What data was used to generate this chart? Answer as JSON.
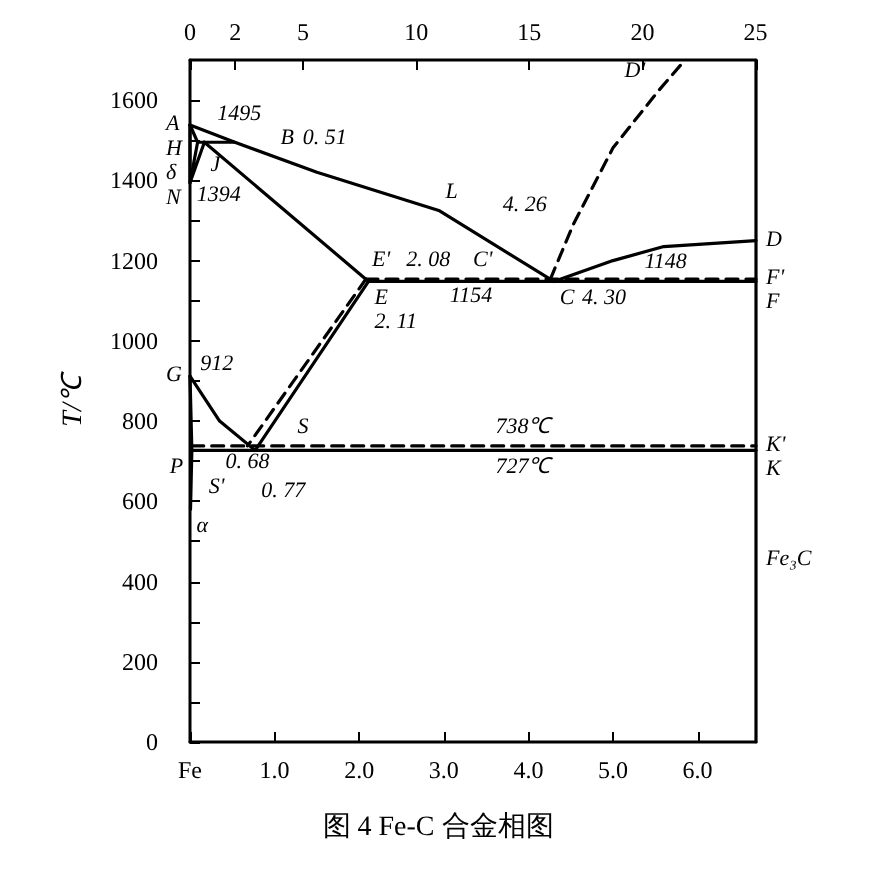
{
  "chart_data": {
    "type": "line",
    "ylabel": "T/℃",
    "marker": "none",
    "grid": false,
    "line_style": "solid",
    "xlim": [
      0,
      6.69
    ],
    "ylim": [
      0,
      1700
    ],
    "x2lim": [
      0,
      25.02
    ],
    "xticks": [
      {
        "value": 0,
        "label": "Fe"
      },
      {
        "value": 1,
        "label": "1.0"
      },
      {
        "value": 2,
        "label": "2.0"
      },
      {
        "value": 3,
        "label": "3.0"
      },
      {
        "value": 4,
        "label": "4.0"
      },
      {
        "value": 5,
        "label": "5.0"
      },
      {
        "value": 6,
        "label": "6.0"
      }
    ],
    "x2ticks": [
      0,
      2,
      5,
      10,
      15,
      20,
      25
    ],
    "yticks": [
      0,
      {
        "value": 100,
        "label": null
      },
      200,
      {
        "value": 300,
        "label": null
      },
      400,
      {
        "value": 500,
        "label": null
      },
      600,
      {
        "value": 700,
        "label": null
      },
      800,
      {
        "value": 900,
        "label": null
      },
      1000,
      {
        "value": 1100,
        "label": null
      },
      1200,
      {
        "value": 1300,
        "label": null
      },
      1400,
      {
        "value": 1500,
        "label": null
      },
      1600
    ],
    "series": [
      {
        "color": "#000000",
        "x": [
          0,
          0.53,
          1.5,
          2.95,
          4.3
        ],
        "values": [
          1538,
          1495,
          1420,
          1324,
          1148
        ]
      },
      {
        "color": "#000000",
        "x": [
          4.3,
          5.0,
          5.6,
          6.69
        ],
        "values": [
          1148,
          1200,
          1235,
          1250
        ]
      },
      {
        "color": "#000000",
        "x": [
          0,
          0.09,
          0.53
        ],
        "values": [
          1538,
          1495,
          1495
        ]
      },
      {
        "color": "#000000",
        "x": [
          0.09,
          0,
          0.17
        ],
        "values": [
          1495,
          1394,
          1495
        ]
      },
      {
        "color": "#000000",
        "x": [
          0,
          0
        ],
        "values": [
          1538,
          1394
        ]
      },
      {
        "color": "#000000",
        "x": [
          0.17,
          2.11
        ],
        "values": [
          1495,
          1148
        ]
      },
      {
        "color": "#000000",
        "x": [
          2.11,
          6.69
        ],
        "values": [
          1148,
          1148
        ]
      },
      {
        "color": "#000000",
        "line_style": "dashed",
        "x": [
          2.08,
          6.69
        ],
        "values": [
          1154,
          1154
        ]
      },
      {
        "color": "#000000",
        "x": [
          2.11,
          0.77
        ],
        "values": [
          1148,
          727
        ]
      },
      {
        "color": "#000000",
        "line_style": "dashed",
        "x": [
          2.08,
          0.68
        ],
        "values": [
          1154,
          738
        ]
      },
      {
        "color": "#000000",
        "x": [
          0,
          0.35,
          0.77
        ],
        "values": [
          912,
          800,
          727
        ]
      },
      {
        "color": "#000000",
        "x": [
          0,
          0.0218,
          0.006
        ],
        "values": [
          912,
          727,
          580
        ]
      },
      {
        "color": "#000000",
        "x": [
          0.0218,
          6.69
        ],
        "values": [
          727,
          727
        ]
      },
      {
        "color": "#000000",
        "line_style": "dashed",
        "x": [
          0.02,
          6.69
        ],
        "values": [
          738,
          738
        ]
      },
      {
        "color": "#000000",
        "line_style": "dashed",
        "x": [
          4.26,
          4.53,
          5.0,
          5.54,
          5.83
        ],
        "values": [
          1154,
          1290,
          1481,
          1624,
          1695
        ]
      },
      {
        "color": "#000000",
        "x": [
          6.69,
          6.69
        ],
        "values": [
          0,
          1700
        ]
      }
    ],
    "annotations": [
      {
        "text": "1495",
        "x": 0.25,
        "y": 1518
      },
      {
        "text": "A",
        "x": 0,
        "y": 1538
      },
      {
        "text": "B",
        "x": 1.0,
        "y": 1459
      },
      {
        "text": "0. 51",
        "x": 1.0,
        "y": 1459
      },
      {
        "text": "H",
        "x": 0,
        "y": 1495
      },
      {
        "text": "δ",
        "x": 0,
        "y": 1450
      },
      {
        "text": "N",
        "x": 0,
        "y": 1394
      },
      {
        "text": "J",
        "x": 0.17,
        "y": 1495
      },
      {
        "text": "1394",
        "x": 0.01,
        "y": 1405
      },
      {
        "text": "L",
        "x": 2.95,
        "y": 1324
      },
      {
        "text": "E'",
        "x": 2.08,
        "y": 1154
      },
      {
        "text": "2. 08",
        "x": 2.08,
        "y": 1154
      },
      {
        "text": "1154",
        "x": 3.0,
        "y": 1154
      },
      {
        "text": "C'",
        "x": 3.75,
        "y": 1154
      },
      {
        "text": "4. 26",
        "x": 4.53,
        "y": 1290
      },
      {
        "text": "E",
        "x": 2.11,
        "y": 1148
      },
      {
        "text": "2. 11",
        "x": 2.11,
        "y": 1148
      },
      {
        "text": "D'",
        "x": 5.54,
        "y": 1624
      },
      {
        "text": "D",
        "x": 6.69,
        "y": 1250
      },
      {
        "text": "F'",
        "x": 6.69,
        "y": 1154
      },
      {
        "text": "F",
        "x": 6.69,
        "y": 1148
      },
      {
        "text": "C",
        "x": 4.3,
        "y": 1148
      },
      {
        "text": "4. 30",
        "x": 4.3,
        "y": 1148
      },
      {
        "text": "1148",
        "x": 5.3,
        "y": 1148
      },
      {
        "text": "G",
        "x": 0,
        "y": 912
      },
      {
        "text": "912",
        "x": 0.05,
        "y": 896
      },
      {
        "text": "0. 68",
        "x": 0.35,
        "y": 800
      },
      {
        "text": "S'",
        "x": 0.15,
        "y": 738
      },
      {
        "text": "S",
        "x": 1.2,
        "y": 738
      },
      {
        "text": "P",
        "x": 0.0218,
        "y": 727
      },
      {
        "text": "0. 77",
        "x": 0.77,
        "y": 727
      },
      {
        "text": "738℃",
        "x": 3.54,
        "y": 738
      },
      {
        "text": "727℃",
        "x": 3.54,
        "y": 727
      },
      {
        "text": "K'",
        "x": 6.69,
        "y": 738
      },
      {
        "text": "K",
        "x": 6.69,
        "y": 727
      },
      {
        "text": "Fe₃C",
        "x": 6.69,
        "y": 453
      },
      {
        "text": "α",
        "x": 0.006,
        "y": 580
      },
      "图 4 Fe-C 合金相图"
    ]
  }
}
